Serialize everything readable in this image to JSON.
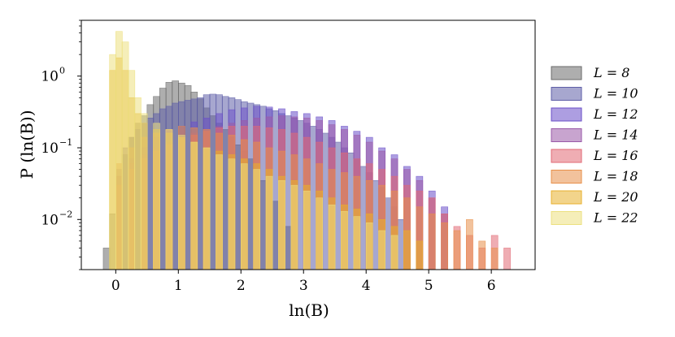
{
  "chart_data": {
    "type": "histogram",
    "title": "",
    "xlabel": "ln(B)",
    "ylabel": "P (ln(B))",
    "xlim": [
      -0.55,
      6.7
    ],
    "ylim": [
      0.002,
      6
    ],
    "yscale": "log",
    "x_ticks": [
      0,
      1,
      2,
      3,
      4,
      5,
      6
    ],
    "x_tick_labels": [
      "0",
      "1",
      "2",
      "3",
      "4",
      "5",
      "6"
    ],
    "y_ticks": [
      0.01,
      0.1,
      1
    ],
    "y_tick_labels": [
      "10",
      "10",
      "10"
    ],
    "y_tick_exponents": [
      "−2",
      "−1",
      "0"
    ],
    "grid": false,
    "legend_position": "outside-right",
    "bin_width": 0.1,
    "series": [
      {
        "name": "L = 8",
        "color": "#6b6b6b",
        "points": [
          [
            -0.2,
            0.004
          ],
          [
            -0.1,
            0.012
          ],
          [
            0.1,
            0.08
          ],
          [
            0.2,
            0.14
          ],
          [
            0.3,
            0.22
          ],
          [
            0.4,
            0.28
          ],
          [
            0.5,
            0.4
          ],
          [
            0.6,
            0.52
          ],
          [
            0.7,
            0.68
          ],
          [
            0.8,
            0.82
          ],
          [
            0.9,
            0.86
          ],
          [
            1.0,
            0.8
          ],
          [
            1.1,
            0.74
          ],
          [
            1.2,
            0.6
          ],
          [
            1.3,
            0.48
          ],
          [
            1.4,
            0.36
          ],
          [
            1.5,
            0.28
          ],
          [
            1.6,
            0.22
          ],
          [
            1.7,
            0.18
          ],
          [
            1.8,
            0.14
          ],
          [
            1.9,
            0.11
          ],
          [
            2.0,
            0.09
          ],
          [
            2.1,
            0.07
          ],
          [
            2.2,
            0.05
          ],
          [
            2.3,
            0.035
          ],
          [
            2.4,
            0.025
          ],
          [
            2.5,
            0.018
          ],
          [
            2.6,
            0.012
          ],
          [
            2.7,
            0.008
          ],
          [
            2.8,
            0.005
          ]
        ]
      },
      {
        "name": "L = 10",
        "color": "#5f5fa8",
        "points": [
          [
            0.0,
            0.05
          ],
          [
            0.1,
            0.1
          ],
          [
            0.2,
            0.14
          ],
          [
            0.3,
            0.18
          ],
          [
            0.4,
            0.22
          ],
          [
            0.5,
            0.26
          ],
          [
            0.6,
            0.3
          ],
          [
            0.7,
            0.35
          ],
          [
            0.8,
            0.38
          ],
          [
            0.9,
            0.42
          ],
          [
            1.0,
            0.44
          ],
          [
            1.1,
            0.46
          ],
          [
            1.2,
            0.48
          ],
          [
            1.3,
            0.5
          ],
          [
            1.4,
            0.55
          ],
          [
            1.5,
            0.56
          ],
          [
            1.6,
            0.55
          ],
          [
            1.7,
            0.52
          ],
          [
            1.8,
            0.5
          ],
          [
            1.9,
            0.47
          ],
          [
            2.0,
            0.44
          ],
          [
            2.1,
            0.42
          ],
          [
            2.2,
            0.4
          ],
          [
            2.3,
            0.38
          ],
          [
            2.4,
            0.35
          ],
          [
            2.5,
            0.33
          ],
          [
            2.6,
            0.3
          ],
          [
            2.7,
            0.28
          ],
          [
            2.8,
            0.26
          ],
          [
            2.9,
            0.24
          ],
          [
            3.0,
            0.22
          ],
          [
            3.1,
            0.2
          ],
          [
            3.2,
            0.18
          ],
          [
            3.3,
            0.16
          ],
          [
            3.4,
            0.14
          ],
          [
            3.5,
            0.12
          ],
          [
            3.6,
            0.1
          ],
          [
            3.7,
            0.085
          ],
          [
            3.8,
            0.07
          ],
          [
            3.9,
            0.055
          ],
          [
            4.0,
            0.045
          ],
          [
            4.1,
            0.035
          ],
          [
            4.2,
            0.028
          ],
          [
            4.3,
            0.02
          ],
          [
            4.4,
            0.015
          ],
          [
            4.5,
            0.01
          ]
        ]
      },
      {
        "name": "L = 12",
        "color": "#6a4fc8",
        "points": [
          [
            0.0,
            0.04
          ],
          [
            0.2,
            0.07
          ],
          [
            0.4,
            0.1
          ],
          [
            0.6,
            0.14
          ],
          [
            0.8,
            0.17
          ],
          [
            1.0,
            0.2
          ],
          [
            1.2,
            0.23
          ],
          [
            1.4,
            0.26
          ],
          [
            1.6,
            0.3
          ],
          [
            1.8,
            0.34
          ],
          [
            2.0,
            0.36
          ],
          [
            2.2,
            0.38
          ],
          [
            2.4,
            0.37
          ],
          [
            2.6,
            0.35
          ],
          [
            2.8,
            0.32
          ],
          [
            3.0,
            0.3
          ],
          [
            3.2,
            0.27
          ],
          [
            3.4,
            0.24
          ],
          [
            3.6,
            0.2
          ],
          [
            3.8,
            0.17
          ],
          [
            4.0,
            0.14
          ],
          [
            4.2,
            0.1
          ],
          [
            4.4,
            0.08
          ],
          [
            4.6,
            0.055
          ],
          [
            4.8,
            0.04
          ],
          [
            5.0,
            0.025
          ],
          [
            5.2,
            0.015
          ]
        ]
      },
      {
        "name": "L = 14",
        "color": "#9a5aa8",
        "points": [
          [
            0.0,
            0.04
          ],
          [
            0.2,
            0.06
          ],
          [
            0.4,
            0.08
          ],
          [
            0.6,
            0.1
          ],
          [
            0.8,
            0.12
          ],
          [
            1.0,
            0.14
          ],
          [
            1.2,
            0.16
          ],
          [
            1.4,
            0.18
          ],
          [
            1.6,
            0.2
          ],
          [
            1.8,
            0.22
          ],
          [
            2.0,
            0.24
          ],
          [
            2.2,
            0.26
          ],
          [
            2.4,
            0.27
          ],
          [
            2.6,
            0.28
          ],
          [
            2.8,
            0.27
          ],
          [
            3.0,
            0.26
          ],
          [
            3.2,
            0.24
          ],
          [
            3.4,
            0.21
          ],
          [
            3.6,
            0.18
          ],
          [
            3.8,
            0.15
          ],
          [
            4.0,
            0.12
          ],
          [
            4.2,
            0.09
          ],
          [
            4.4,
            0.07
          ],
          [
            4.6,
            0.05
          ],
          [
            4.8,
            0.035
          ],
          [
            5.0,
            0.02
          ],
          [
            5.2,
            0.012
          ]
        ]
      },
      {
        "name": "L = 16",
        "color": "#e26a74",
        "points": [
          [
            0.0,
            0.03
          ],
          [
            0.2,
            0.05
          ],
          [
            0.4,
            0.07
          ],
          [
            0.6,
            0.09
          ],
          [
            0.8,
            0.11
          ],
          [
            1.0,
            0.13
          ],
          [
            1.2,
            0.15
          ],
          [
            1.4,
            0.17
          ],
          [
            1.6,
            0.19
          ],
          [
            1.8,
            0.2
          ],
          [
            2.0,
            0.2
          ],
          [
            2.2,
            0.2
          ],
          [
            2.4,
            0.19
          ],
          [
            2.6,
            0.18
          ],
          [
            2.8,
            0.16
          ],
          [
            3.0,
            0.14
          ],
          [
            3.2,
            0.12
          ],
          [
            3.4,
            0.1
          ],
          [
            3.6,
            0.085
          ],
          [
            3.8,
            0.07
          ],
          [
            4.0,
            0.06
          ],
          [
            4.2,
            0.05
          ],
          [
            4.4,
            0.04
          ],
          [
            4.6,
            0.03
          ],
          [
            4.8,
            0.025
          ],
          [
            5.0,
            0.02
          ],
          [
            5.2,
            0.012
          ],
          [
            5.4,
            0.008
          ],
          [
            5.6,
            0.006
          ],
          [
            5.8,
            0.004
          ],
          [
            6.0,
            0.006
          ],
          [
            6.2,
            0.004
          ]
        ]
      },
      {
        "name": "L = 18",
        "color": "#e8904a",
        "points": [
          [
            0.0,
            0.06
          ],
          [
            0.2,
            0.1
          ],
          [
            0.4,
            0.14
          ],
          [
            0.6,
            0.16
          ],
          [
            0.8,
            0.18
          ],
          [
            1.0,
            0.2
          ],
          [
            1.2,
            0.19
          ],
          [
            1.4,
            0.18
          ],
          [
            1.6,
            0.16
          ],
          [
            1.8,
            0.15
          ],
          [
            2.0,
            0.13
          ],
          [
            2.2,
            0.12
          ],
          [
            2.4,
            0.1
          ],
          [
            2.6,
            0.09
          ],
          [
            2.8,
            0.08
          ],
          [
            3.0,
            0.07
          ],
          [
            3.2,
            0.06
          ],
          [
            3.4,
            0.05
          ],
          [
            3.6,
            0.045
          ],
          [
            3.8,
            0.04
          ],
          [
            4.0,
            0.035
          ],
          [
            4.2,
            0.03
          ],
          [
            4.4,
            0.025
          ],
          [
            4.6,
            0.02
          ],
          [
            4.8,
            0.015
          ],
          [
            5.0,
            0.012
          ],
          [
            5.2,
            0.009
          ],
          [
            5.4,
            0.007
          ],
          [
            5.6,
            0.01
          ],
          [
            5.8,
            0.005
          ],
          [
            6.0,
            0.004
          ]
        ]
      },
      {
        "name": "L = 20",
        "color": "#e8b02c",
        "points": [
          [
            -0.1,
            1.2
          ],
          [
            0.0,
            1.8
          ],
          [
            0.1,
            1.2
          ],
          [
            0.2,
            0.5
          ],
          [
            0.3,
            0.3
          ],
          [
            0.4,
            0.22
          ],
          [
            0.6,
            0.18
          ],
          [
            0.8,
            0.16
          ],
          [
            1.0,
            0.14
          ],
          [
            1.2,
            0.12
          ],
          [
            1.4,
            0.1
          ],
          [
            1.6,
            0.09
          ],
          [
            1.8,
            0.08
          ],
          [
            2.0,
            0.07
          ],
          [
            2.2,
            0.06
          ],
          [
            2.4,
            0.05
          ],
          [
            2.6,
            0.04
          ],
          [
            2.8,
            0.035
          ],
          [
            3.0,
            0.03
          ],
          [
            3.2,
            0.025
          ],
          [
            3.4,
            0.02
          ],
          [
            3.6,
            0.016
          ],
          [
            3.8,
            0.014
          ],
          [
            4.0,
            0.012
          ],
          [
            4.2,
            0.01
          ],
          [
            4.4,
            0.008
          ],
          [
            4.6,
            0.007
          ],
          [
            4.8,
            0.005
          ]
        ]
      },
      {
        "name": "L = 22",
        "color": "#ece080",
        "points": [
          [
            -0.1,
            2.0
          ],
          [
            0.0,
            4.2
          ],
          [
            0.1,
            3.0
          ],
          [
            0.2,
            1.2
          ],
          [
            0.3,
            0.5
          ],
          [
            0.4,
            0.3
          ],
          [
            0.6,
            0.22
          ],
          [
            0.8,
            0.18
          ],
          [
            1.0,
            0.15
          ],
          [
            1.2,
            0.12
          ],
          [
            1.4,
            0.1
          ],
          [
            1.6,
            0.08
          ],
          [
            1.8,
            0.07
          ],
          [
            2.0,
            0.06
          ],
          [
            2.2,
            0.05
          ],
          [
            2.4,
            0.04
          ],
          [
            2.6,
            0.035
          ],
          [
            2.8,
            0.03
          ],
          [
            3.0,
            0.025
          ],
          [
            3.2,
            0.02
          ],
          [
            3.4,
            0.016
          ],
          [
            3.6,
            0.013
          ],
          [
            3.8,
            0.011
          ],
          [
            4.0,
            0.009
          ],
          [
            4.2,
            0.007
          ],
          [
            4.4,
            0.006
          ]
        ]
      }
    ]
  }
}
